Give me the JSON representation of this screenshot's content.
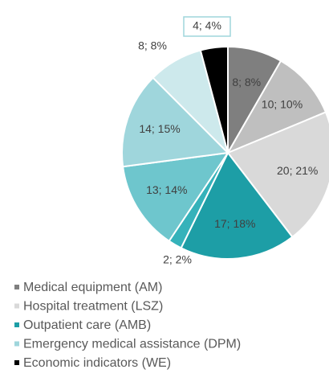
{
  "chart_data": {
    "type": "pie",
    "values": [
      8,
      10,
      20,
      17,
      2,
      13,
      14,
      8,
      4
    ],
    "value_labels": [
      "8; 8%",
      "10; 10%",
      "20; 21%",
      "17; 18%",
      "2; 2%",
      "13; 14%",
      "14; 15%",
      "8; 8%",
      "4; 4%"
    ],
    "colors": [
      "#7f7f7f",
      "#bfbfbf",
      "#d9d9d9",
      "#1d9ea6",
      "#35b2ba",
      "#6ec6cd",
      "#9fd6dc",
      "#cde9ec",
      "#000000"
    ],
    "legend": [
      {
        "name": "Medical equipment (AM)",
        "color": "#7f7f7f"
      },
      {
        "name": "Hospital treatment (LSZ)",
        "color": "#d9d9d9"
      },
      {
        "name": "Outpatient care (AMB)",
        "color": "#1d9ea6"
      },
      {
        "name": "Emergency medical assistance (DPM)",
        "color": "#9fd6dc"
      },
      {
        "name": "Economic indicators (WE)",
        "color": "#000000"
      }
    ]
  }
}
